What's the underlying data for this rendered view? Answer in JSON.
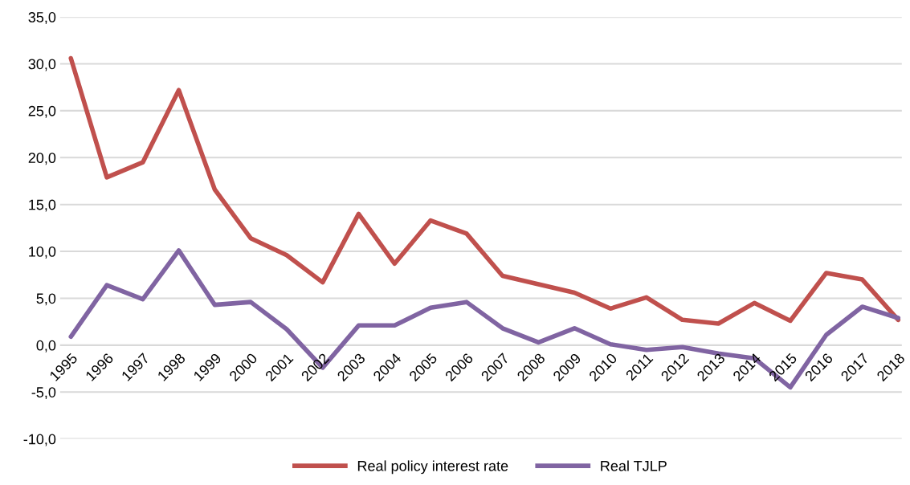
{
  "chart_data": {
    "type": "line",
    "categories": [
      "1995",
      "1996",
      "1997",
      "1998",
      "1999",
      "2000",
      "2001",
      "2002",
      "2003",
      "2004",
      "2005",
      "2006",
      "2007",
      "2008",
      "2009",
      "2010",
      "2011",
      "2012",
      "2013",
      "2014",
      "2015",
      "2016",
      "2017",
      "2018"
    ],
    "series": [
      {
        "name": "Real policy interest rate",
        "color": "#c0504d",
        "values": [
          30.6,
          17.9,
          19.5,
          27.2,
          16.6,
          11.4,
          9.6,
          6.7,
          14.0,
          8.7,
          13.3,
          11.9,
          7.4,
          6.5,
          5.6,
          3.9,
          5.1,
          2.7,
          2.3,
          4.5,
          2.6,
          7.7,
          7.0,
          2.7
        ]
      },
      {
        "name": "Real TJLP",
        "color": "#8064a2",
        "values": [
          0.9,
          6.4,
          4.9,
          10.1,
          4.3,
          4.6,
          1.7,
          -2.4,
          2.1,
          2.1,
          4.0,
          4.6,
          1.8,
          0.3,
          1.8,
          0.1,
          -0.5,
          -0.2,
          -0.9,
          -1.4,
          -4.5,
          1.1,
          4.1,
          2.9
        ]
      }
    ],
    "ylim": [
      -10,
      35
    ],
    "yticks": [
      {
        "value": -10,
        "label": "-10,0"
      },
      {
        "value": -5,
        "label": "-5,0"
      },
      {
        "value": 0,
        "label": "0,0"
      },
      {
        "value": 5,
        "label": "5,0"
      },
      {
        "value": 10,
        "label": "10,0"
      },
      {
        "value": 15,
        "label": "15,0"
      },
      {
        "value": 20,
        "label": "20,0"
      },
      {
        "value": 25,
        "label": "25,0"
      },
      {
        "value": 30,
        "label": "30,0"
      },
      {
        "value": 35,
        "label": "35,0"
      }
    ],
    "grid": "y",
    "legend": "bottom",
    "marker": "none",
    "line_style": "solid"
  }
}
